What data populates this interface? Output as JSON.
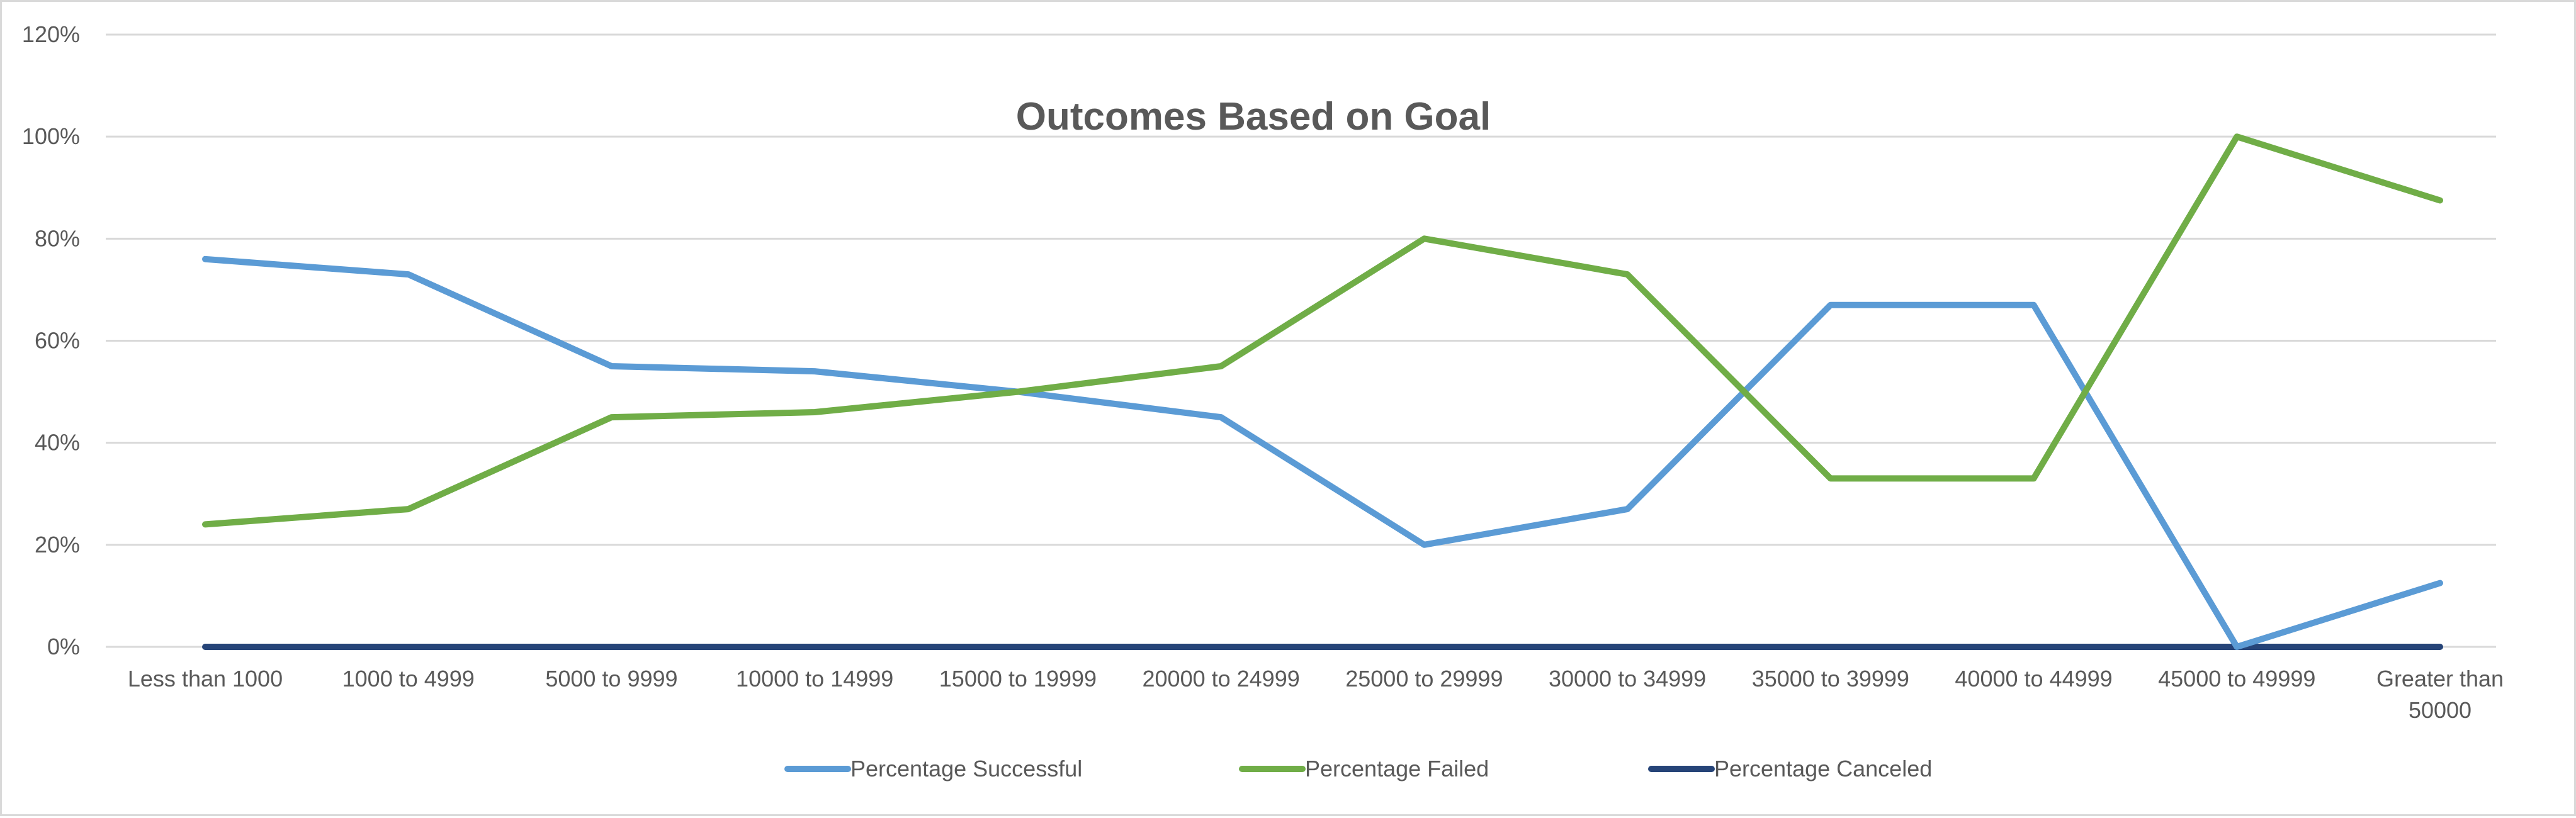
{
  "chart_data": {
    "type": "line",
    "title": "Outcomes Based on Goal",
    "xlabel": "",
    "ylabel": "",
    "categories": [
      "Less than 1000",
      "1000 to 4999",
      "5000 to 9999",
      "10000 to 14999",
      "15000 to 19999",
      "20000 to 24999",
      "25000 to 29999",
      "30000 to 34999",
      "35000 to 39999",
      "40000 to 44999",
      "45000 to 49999",
      "Greater than 50000"
    ],
    "category_lines": [
      [
        "Less than 1000"
      ],
      [
        "1000 to 4999"
      ],
      [
        "5000 to 9999"
      ],
      [
        "10000 to 14999"
      ],
      [
        "15000 to 19999"
      ],
      [
        "20000 to 24999"
      ],
      [
        "25000 to 29999"
      ],
      [
        "30000 to 34999"
      ],
      [
        "35000 to 39999"
      ],
      [
        "40000 to 44999"
      ],
      [
        "45000 to 49999"
      ],
      [
        "Greater than",
        "50000"
      ]
    ],
    "ylim": [
      0,
      120
    ],
    "yticks": [
      0,
      20,
      40,
      60,
      80,
      100,
      120
    ],
    "ytick_labels": [
      "0%",
      "20%",
      "40%",
      "60%",
      "80%",
      "100%",
      "120%"
    ],
    "grid": true,
    "legend_position": "bottom",
    "series": [
      {
        "name": "Percentage Successful",
        "color": "#5b9bd5",
        "values": [
          76,
          73,
          55,
          54,
          50,
          45,
          20,
          27,
          67,
          67,
          0,
          12.5
        ]
      },
      {
        "name": "Percentage Failed",
        "color": "#70ad47",
        "values": [
          24,
          27,
          45,
          46,
          50,
          55,
          80,
          73,
          33,
          33,
          100,
          87.5
        ]
      },
      {
        "name": "Percentage Canceled",
        "color": "#264478",
        "values": [
          0,
          0,
          0,
          0,
          0,
          0,
          0,
          0,
          0,
          0,
          0,
          0
        ]
      }
    ]
  }
}
